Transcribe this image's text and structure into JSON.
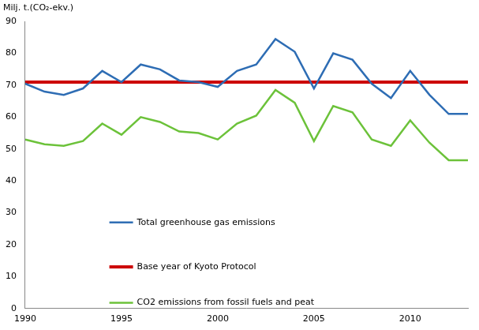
{
  "chart_data": {
    "type": "line",
    "ylabel": "Milj. t.(CO₂-ekv.)",
    "x": [
      1990,
      1991,
      1992,
      1993,
      1994,
      1995,
      1996,
      1997,
      1998,
      1999,
      2000,
      2001,
      2002,
      2003,
      2004,
      2005,
      2006,
      2007,
      2008,
      2009,
      2010,
      2011,
      2012,
      2013
    ],
    "xlim": [
      1990,
      2013
    ],
    "xticks": [
      1990,
      1995,
      2000,
      2005,
      2010
    ],
    "ylim": [
      0,
      90
    ],
    "yticks": [
      0,
      10,
      20,
      30,
      40,
      50,
      60,
      70,
      80,
      90
    ],
    "grid": false,
    "legend": "center",
    "series": [
      {
        "name": "Total greenhouse gas emissions",
        "color": "#2e6db4",
        "values": [
          70.5,
          68,
          67,
          69,
          74.5,
          71,
          76.5,
          75,
          71.5,
          71,
          69.5,
          74.5,
          76.5,
          84.5,
          80.5,
          69,
          80,
          78,
          70.5,
          66,
          74.5,
          67,
          61,
          61
        ]
      },
      {
        "name": "Base year of Kyoto Protocol",
        "color": "#cc0000",
        "values": [
          71,
          71,
          71,
          71,
          71,
          71,
          71,
          71,
          71,
          71,
          71,
          71,
          71,
          71,
          71,
          71,
          71,
          71,
          71,
          71,
          71,
          71,
          71,
          71
        ]
      },
      {
        "name": "CO2 emissions from fossil fuels and peat",
        "color": "#6cc23a",
        "values": [
          53,
          51.5,
          51,
          52.5,
          58,
          54.5,
          60,
          58.5,
          55.5,
          55,
          53,
          58,
          60.5,
          68.5,
          64.5,
          52.5,
          63.5,
          61.5,
          53,
          51,
          59,
          52,
          46.5,
          46.5
        ]
      }
    ]
  }
}
